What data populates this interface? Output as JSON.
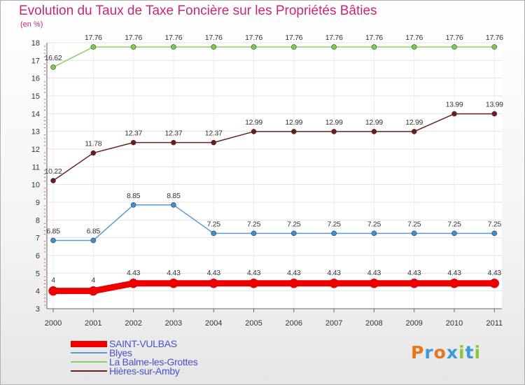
{
  "title": "Evolution du Taux de Taxe Foncière sur les Propriétés Bâties",
  "unit_label": "(en %)",
  "logo": {
    "letters": [
      "P",
      "r",
      "o",
      "x",
      "i",
      "t",
      "i"
    ],
    "colors": [
      "#e8751a",
      "#3d9ad6",
      "#e8751a",
      "#3d9ad6",
      "#8cc63f",
      "#3d9ad6",
      "#8cc63f"
    ]
  },
  "chart_data": {
    "type": "line",
    "title": "Evolution du Taux de Taxe Foncière sur les Propriétés Bâties",
    "ylabel": "(en %)",
    "xlabel": "",
    "ylim": [
      3,
      18
    ],
    "yticks": [
      3,
      4,
      5,
      6,
      7,
      8,
      9,
      10,
      11,
      12,
      13,
      14,
      15,
      16,
      17,
      18
    ],
    "x": [
      "2000",
      "2001",
      "2002",
      "2003",
      "2004",
      "2005",
      "2006",
      "2007",
      "2008",
      "2009",
      "2010",
      "2011"
    ],
    "legend_position": "bottom-left",
    "series": [
      {
        "name": "SAINT-VULBAS",
        "color": "#ee0000",
        "values": [
          4,
          4,
          4.43,
          4.43,
          4.43,
          4.43,
          4.43,
          4.43,
          4.43,
          4.43,
          4.43,
          4.43
        ],
        "labels": [
          "4",
          "4",
          "4.43",
          "4.43",
          "4.43",
          "4.43",
          "4.43",
          "4.43",
          "4.43",
          "4.43",
          "4.43",
          "4.43"
        ]
      },
      {
        "name": "Blyes",
        "color": "#5a9ad2",
        "values": [
          6.85,
          6.85,
          8.85,
          8.85,
          7.25,
          7.25,
          7.25,
          7.25,
          7.25,
          7.25,
          7.25,
          7.25
        ],
        "labels": [
          "6.85",
          "6.85",
          "8.85",
          "8.85",
          "7.25",
          "7.25",
          "7.25",
          "7.25",
          "7.25",
          "7.25",
          "7.25",
          "7.25"
        ]
      },
      {
        "name": "La Balme-les-Grottes",
        "color": "#8ad26a",
        "values": [
          16.62,
          17.76,
          17.76,
          17.76,
          17.76,
          17.76,
          17.76,
          17.76,
          17.76,
          17.76,
          17.76,
          17.76
        ],
        "labels": [
          "16.62",
          "17.76",
          "17.76",
          "17.76",
          "17.76",
          "17.76",
          "17.76",
          "17.76",
          "17.76",
          "17.76",
          "17.76",
          "17.76"
        ]
      },
      {
        "name": "Hières-sur-Amby",
        "color": "#6a2020",
        "values": [
          10.22,
          11.78,
          12.37,
          12.37,
          12.37,
          12.99,
          12.99,
          12.99,
          12.99,
          12.99,
          13.99,
          13.99
        ],
        "labels": [
          "10.22",
          "11.78",
          "12.37",
          "12.37",
          "12.37",
          "12.99",
          "12.99",
          "12.99",
          "12.99",
          "12.99",
          "13.99",
          "13.99"
        ]
      }
    ]
  }
}
